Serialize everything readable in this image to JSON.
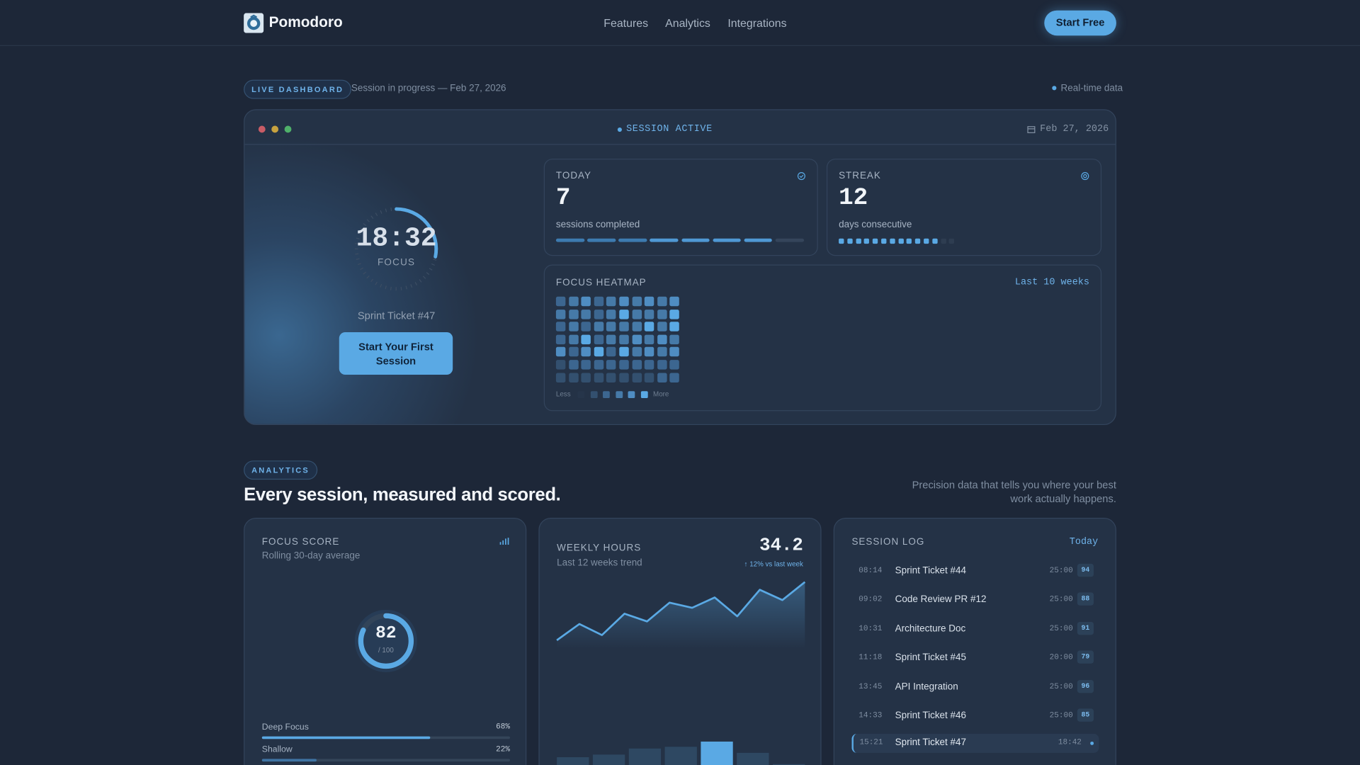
{
  "nav": {
    "brand": "Pomodoro",
    "links": [
      "Features",
      "Analytics",
      "Integrations"
    ],
    "cta": "Start Free"
  },
  "hero": {
    "badge": "LIVE DASHBOARD",
    "status": "Session in progress — Feb 27, 2026",
    "realtime": "Real-time data"
  },
  "window": {
    "status": "SESSION ACTIVE",
    "date": "Feb 27, 2026",
    "timer": "18:32",
    "timer_label": "FOCUS",
    "task": "Sprint Ticket #47",
    "button": "Start Your First Session"
  },
  "today": {
    "title": "TODAY",
    "value": 7,
    "caption": "sessions completed",
    "segments": 8
  },
  "streak": {
    "title": "STREAK",
    "value": 12,
    "caption": "days consecutive",
    "dots": 14
  },
  "heatmap": {
    "title": "FOCUS HEATMAP",
    "range": "Last 10 weeks",
    "less": "Less",
    "more": "More",
    "colors": [
      "#26354a",
      "#33506f",
      "#3c6690",
      "#467aa8",
      "#4f8dc2",
      "#5aa9e4"
    ],
    "levels": [
      [
        2,
        3,
        4,
        2,
        3,
        4,
        3,
        4,
        3,
        4
      ],
      [
        3,
        3,
        3,
        2,
        3,
        5,
        3,
        3,
        3,
        5
      ],
      [
        2,
        3,
        2,
        3,
        3,
        3,
        3,
        5,
        3,
        5
      ],
      [
        2,
        3,
        5,
        2,
        3,
        3,
        4,
        3,
        4,
        3
      ],
      [
        4,
        2,
        4,
        5,
        2,
        5,
        3,
        4,
        3,
        4
      ],
      [
        1,
        2,
        2,
        2,
        2,
        2,
        2,
        2,
        2,
        2
      ],
      [
        1,
        1,
        1,
        1,
        1,
        1,
        1,
        1,
        2,
        2
      ]
    ]
  },
  "analytics": {
    "badge": "ANALYTICS",
    "headline": "Every session, measured and scored.",
    "sub": "Precision data that tells you where your best work actually happens."
  },
  "focus_score": {
    "title": "FOCUS SCORE",
    "subtitle": "Rolling 30-day average",
    "score": 82,
    "max": {
      "value": 100,
      "label": "/ 100"
    },
    "breakdown": [
      {
        "name": "Deep Focus",
        "value": 68,
        "label": "68%"
      },
      {
        "name": "Shallow",
        "value": 22,
        "label": "22%"
      }
    ]
  },
  "weekly": {
    "title": "WEEKLY HOURS",
    "subtitle": "Last 12 weeks trend",
    "total": "34.2",
    "change": "↑ 12% vs last week",
    "trend": [
      7.7,
      14,
      9.7,
      18,
      15,
      22.3,
      20.3,
      24.3,
      17,
      27.3,
      23.3,
      30.3
    ],
    "ylim": [
      0,
      32
    ],
    "bars": [
      10,
      13,
      20,
      22,
      28,
      15,
      2
    ],
    "bars_ylim": [
      0,
      40
    ],
    "bar_colors": [
      "#2e4862",
      "#2e4862",
      "#2e4862",
      "#2e4862",
      "#5aa9e4",
      "#2e4862",
      "#2e4862"
    ]
  },
  "session_log": {
    "title": "SESSION LOG",
    "filter": "Today",
    "rows": [
      {
        "time": "08:14",
        "name": "Sprint Ticket #44",
        "duration": "25:00",
        "score": 94
      },
      {
        "time": "09:02",
        "name": "Code Review PR #12",
        "duration": "25:00",
        "score": 88
      },
      {
        "time": "10:31",
        "name": "Architecture Doc",
        "duration": "25:00",
        "score": 91
      },
      {
        "time": "11:18",
        "name": "Sprint Ticket #45",
        "duration": "20:00",
        "score": 79
      },
      {
        "time": "13:45",
        "name": "API Integration",
        "duration": "25:00",
        "score": 96
      },
      {
        "time": "14:33",
        "name": "Sprint Ticket #46",
        "duration": "25:00",
        "score": 85
      }
    ],
    "active": {
      "time": "15:21",
      "name": "Sprint Ticket #47",
      "duration": "18:42"
    }
  }
}
